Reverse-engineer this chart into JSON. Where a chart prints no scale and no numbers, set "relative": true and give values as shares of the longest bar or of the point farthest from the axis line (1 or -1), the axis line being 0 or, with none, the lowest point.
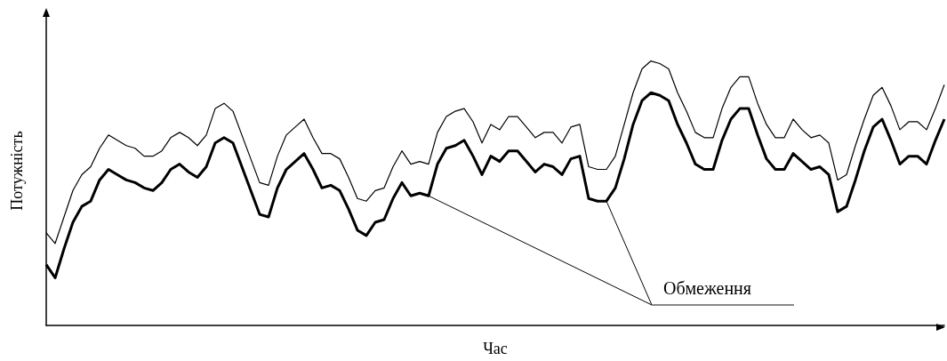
{
  "chart_data": {
    "type": "line",
    "xlabel": "Час",
    "ylabel": "Потужність",
    "relative": true,
    "tick_labels": false,
    "marker": "none",
    "line_style": "solid",
    "grid": false,
    "annotations": [
      "Обмеження"
    ],
    "categories": [
      null,
      null,
      null,
      null,
      null,
      null,
      null,
      null,
      null,
      null,
      null,
      null,
      null,
      null,
      null,
      null,
      null,
      null,
      null,
      null,
      null,
      null,
      null,
      null,
      null,
      null,
      null,
      null,
      null,
      null,
      null,
      null,
      null,
      null,
      null,
      null,
      null,
      null,
      null,
      null,
      null,
      null,
      null,
      null,
      null,
      null,
      null,
      null,
      null,
      null,
      null,
      null,
      null,
      null,
      null,
      null,
      null,
      null,
      null,
      null,
      null,
      null,
      null,
      null,
      null,
      null,
      null,
      null,
      null,
      null,
      null,
      null,
      null,
      null,
      null,
      null,
      null,
      null,
      null,
      null,
      null,
      null,
      null,
      null,
      null,
      null,
      null,
      null,
      null,
      null,
      null,
      null,
      null,
      null,
      null,
      null,
      null,
      null,
      null,
      null,
      null,
      null
    ],
    "series": [
      {
        "color": "#000000",
        "values": [
          0.35,
          0.31,
          0.41,
          0.51,
          0.57,
          0.6,
          0.67,
          0.72,
          0.7,
          0.68,
          0.67,
          0.64,
          0.64,
          0.66,
          0.71,
          0.73,
          0.71,
          0.68,
          0.72,
          0.82,
          0.84,
          0.81,
          0.72,
          0.63,
          0.54,
          0.53,
          0.64,
          0.72,
          0.75,
          0.78,
          0.71,
          0.65,
          0.65,
          0.63,
          0.56,
          0.48,
          0.47,
          0.51,
          0.52,
          0.6,
          0.66,
          0.61,
          0.62,
          0.61,
          0.73,
          0.79,
          0.81,
          0.82,
          0.77,
          0.69,
          0.76,
          0.74,
          0.79,
          0.79,
          0.75,
          0.71,
          0.73,
          0.73,
          0.69,
          0.75,
          0.76,
          0.6,
          0.59,
          0.59,
          0.64,
          0.76,
          0.88,
          0.97,
          1,
          0.99,
          0.97,
          0.88,
          0.81,
          0.73,
          0.71,
          0.71,
          0.82,
          0.9,
          0.94,
          0.94,
          0.84,
          0.76,
          0.71,
          0.71,
          0.78,
          0.74,
          0.71,
          0.72,
          0.69,
          0.55,
          0.57,
          0.68,
          0.78,
          0.87,
          0.9,
          0.83,
          0.74,
          0.77,
          0.77,
          0.74,
          0.82,
          0.91
        ]
      },
      {
        "color": "#000000",
        "values": [
          0.23,
          0.18,
          0.29,
          0.39,
          0.45,
          0.47,
          0.55,
          0.59,
          0.57,
          0.55,
          0.54,
          0.52,
          0.51,
          0.54,
          0.59,
          0.61,
          0.58,
          0.56,
          0.6,
          0.69,
          0.71,
          0.69,
          0.6,
          0.51,
          0.42,
          0.41,
          0.52,
          0.59,
          0.62,
          0.65,
          0.59,
          0.52,
          0.53,
          0.51,
          0.44,
          0.36,
          0.34,
          0.39,
          0.4,
          0.48,
          0.54,
          0.49,
          0.5,
          0.49,
          0.61,
          0.67,
          0.68,
          0.7,
          0.64,
          0.57,
          0.64,
          0.62,
          0.66,
          0.66,
          0.62,
          0.58,
          0.61,
          0.6,
          0.57,
          0.63,
          0.64,
          0.48,
          0.47,
          0.47,
          0.52,
          0.63,
          0.76,
          0.85,
          0.88,
          0.87,
          0.85,
          0.76,
          0.69,
          0.61,
          0.59,
          0.59,
          0.7,
          0.78,
          0.82,
          0.82,
          0.72,
          0.63,
          0.59,
          0.59,
          0.65,
          0.62,
          0.59,
          0.6,
          0.57,
          0.43,
          0.45,
          0.55,
          0.66,
          0.75,
          0.78,
          0.7,
          0.61,
          0.64,
          0.64,
          0.61,
          0.7,
          0.78
        ]
      }
    ]
  }
}
